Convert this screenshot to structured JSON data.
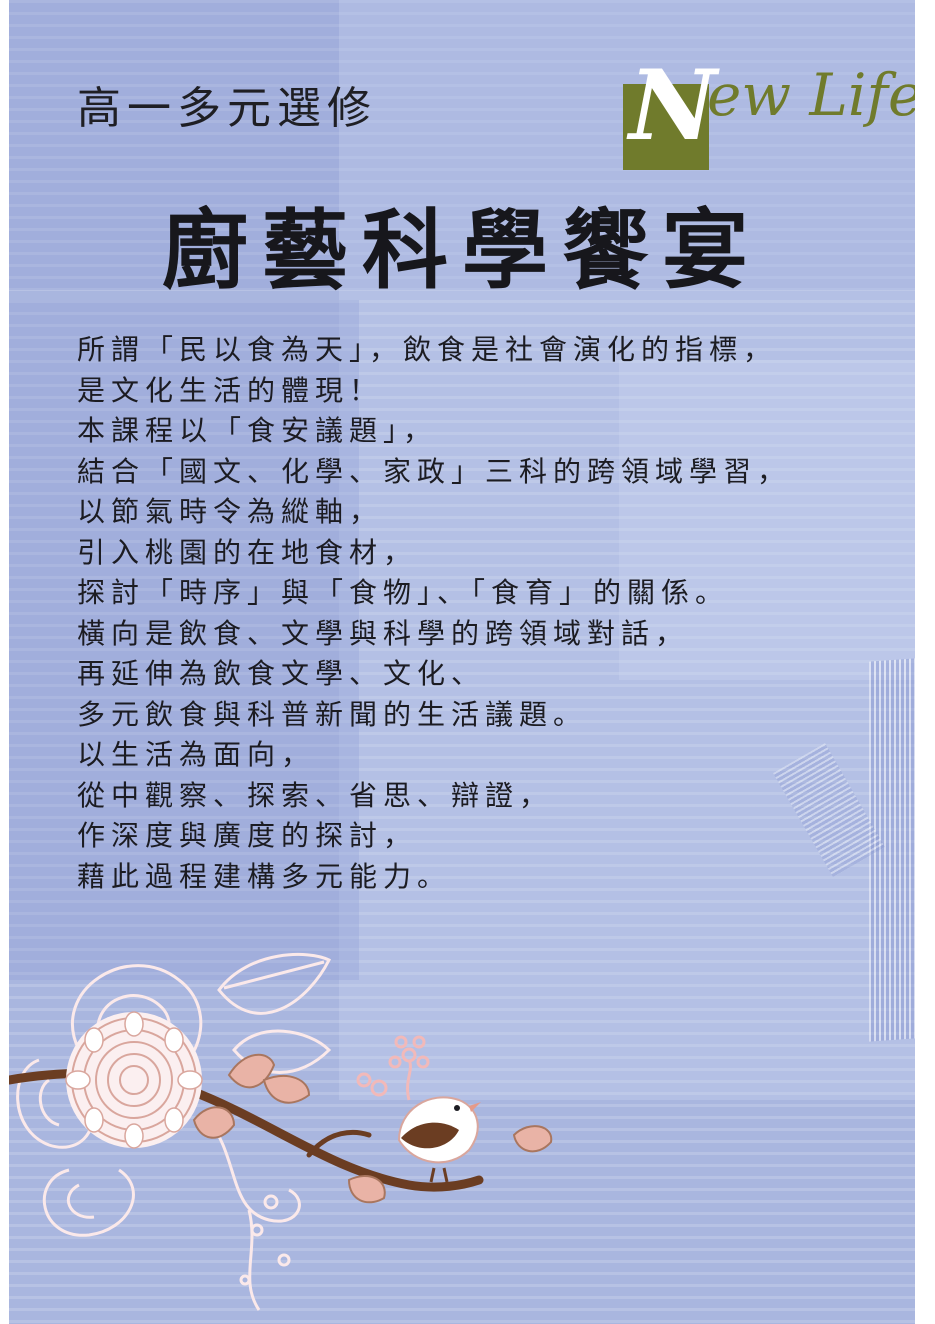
{
  "subtitle": "高一多元選修",
  "logo": {
    "initial": "N",
    "rest": "ew Life",
    "color": "#707b2c"
  },
  "title": "廚藝科學饗宴",
  "body_lines": [
    "所謂「民以食為天」，飲食是社會演化的指標，",
    "是文化生活的體現！",
    "本課程以「食安議題」，",
    "結合「國文、化學、家政」三科的跨領域學習，",
    "以節氣時令為縱軸，",
    "引入桃園的在地食材，",
    "探討「時序」與「食物」、「食育」的關係。",
    "橫向是飲食、文學與科學的跨領域對話，",
    "再延伸為飲食文學、文化、",
    "多元飲食與科普新聞的生活議題。",
    "以生活為面向，",
    "從中觀察、探索、省思、辯證，",
    "作深度與廣度的探討，",
    "藉此過程建構多元能力。"
  ],
  "colors": {
    "background": "#a9b6df",
    "accent_green": "#707b2c",
    "branch_brown": "#6b3d22",
    "leaf_pink": "#e9b3a6"
  },
  "decoration": {
    "icons": [
      "flower-icon",
      "branch-icon",
      "leaf-icon",
      "bird-icon",
      "swirl-icon"
    ]
  }
}
